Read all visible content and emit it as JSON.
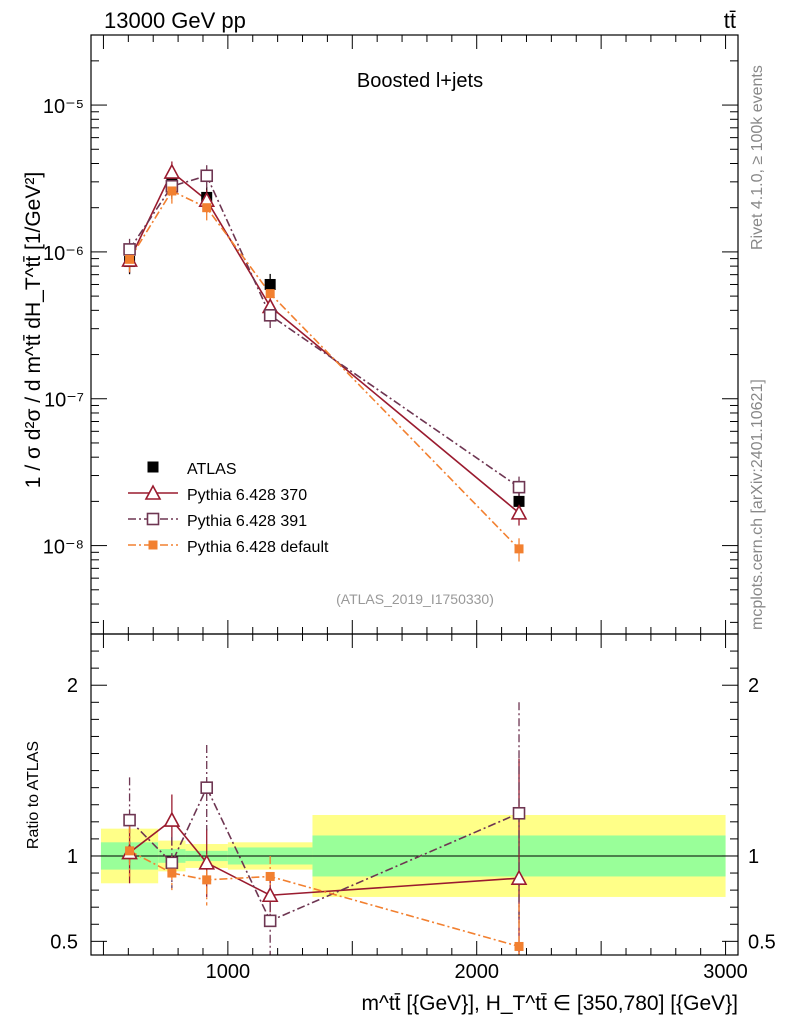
{
  "header": {
    "left": "13000 GeV pp",
    "right": "tt̄"
  },
  "chart_data": {
    "type": "scatter",
    "title": "Boosted l+jets",
    "analysis_id": "(ATLAS_2019_I1750330)",
    "side_text_top": "Rivet 4.1.0, ≥ 100k events",
    "side_text_bottom": "mcplots.cern.ch [arXiv:2401.10621]",
    "ylabel_main": "1 / σ d²σ / d m^tt̄ dH_T^tt̄ [1/GeV²]",
    "ylabel_ratio": "Ratio to ATLAS",
    "xlabel": "m^tt̄ [{GeV}], H_T^tt̄ ∈ [350,780] [{GeV}]",
    "xlim": [
      450,
      3050
    ],
    "ylim_main": [
      2.5e-09,
      3e-05
    ],
    "ylim_ratio": [
      0.42,
      2.3
    ],
    "x_ticks": [
      "1000",
      "2000",
      "3000"
    ],
    "y_ticks_main": [
      "10⁻⁸",
      "10⁻⁷",
      "10⁻⁶",
      "10⁻⁵"
    ],
    "y_ticks_ratio": [
      "0.5",
      "1",
      "2"
    ],
    "bins": [
      [
        490,
        720
      ],
      [
        720,
        830
      ],
      [
        830,
        1000
      ],
      [
        1000,
        1340
      ],
      [
        1340,
        3000
      ]
    ],
    "x": [
      605,
      775,
      915,
      1170,
      2170
    ],
    "series": [
      {
        "name": "ATLAS",
        "marker": "filled-square",
        "color": "#000000",
        "values": [
          8.6e-07,
          2.9e-06,
          2.35e-06,
          6e-07,
          2e-08
        ],
        "band_inner": [
          0.08,
          0.04,
          0.03,
          0.05,
          0.12
        ],
        "band_outer": [
          0.16,
          0.09,
          0.07,
          0.08,
          0.24
        ]
      },
      {
        "name": "Pythia 6.428 370",
        "marker": "open-triangle",
        "color": "#9a1b2f",
        "dash": "solid",
        "values": [
          8.8e-07,
          3.5e-06,
          2.25e-06,
          4.25e-07,
          1.67e-08
        ],
        "ratio": [
          1.02,
          1.21,
          0.96,
          0.77,
          0.87
        ],
        "ratio_err": [
          0.18,
          0.15,
          0.2,
          0.1,
          0.7
        ]
      },
      {
        "name": "Pythia 6.428 391",
        "marker": "open-square",
        "color": "#6e3652",
        "dash": "dashdot",
        "values": [
          1.04e-06,
          2.8e-06,
          3.3e-06,
          3.7e-07,
          2.5e-08
        ],
        "ratio": [
          1.21,
          0.96,
          1.4,
          0.62,
          1.25
        ],
        "ratio_err": [
          0.25,
          0.15,
          0.25,
          0.2,
          0.65
        ]
      },
      {
        "name": "Pythia 6.428 default",
        "marker": "filled-square-small",
        "color": "#f28030",
        "dash": "dashdot",
        "values": [
          8.9e-07,
          2.6e-06,
          2e-06,
          5.2e-07,
          9.5e-09
        ],
        "ratio": [
          1.03,
          0.9,
          0.86,
          0.88,
          0.47
        ],
        "ratio_err": [
          0.15,
          0.1,
          0.15,
          0.12,
          0.25
        ]
      }
    ]
  }
}
